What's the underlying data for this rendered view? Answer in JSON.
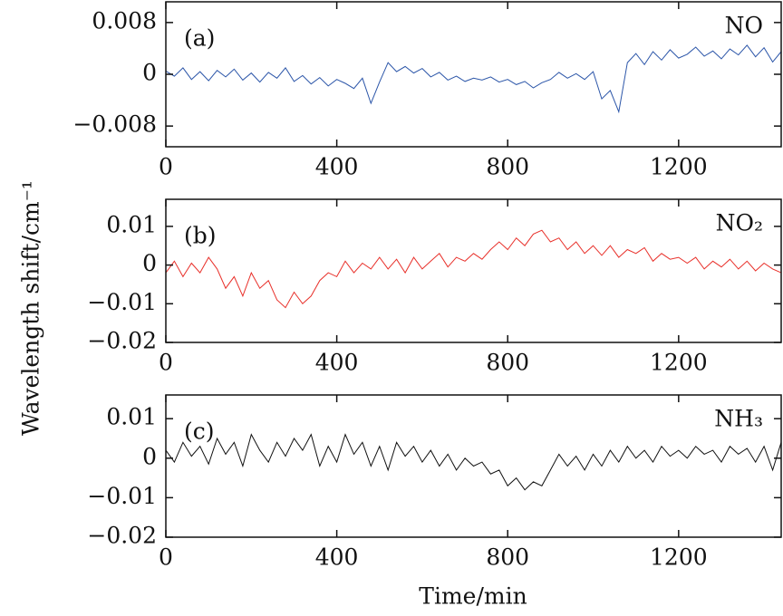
{
  "y_label": "Wavelength shift/cm⁻¹",
  "x_label": "Time/min",
  "chart_data": [
    {
      "type": "line",
      "panel_label": "(a)",
      "annotation": "NO",
      "color": "#2b55a8",
      "x": [
        0,
        20,
        40,
        60,
        80,
        100,
        120,
        140,
        160,
        180,
        200,
        220,
        240,
        260,
        280,
        300,
        320,
        340,
        360,
        380,
        400,
        420,
        440,
        460,
        480,
        500,
        520,
        540,
        560,
        580,
        600,
        620,
        640,
        660,
        680,
        700,
        720,
        740,
        760,
        780,
        800,
        820,
        840,
        860,
        880,
        900,
        920,
        940,
        960,
        980,
        1000,
        1020,
        1040,
        1060,
        1080,
        1100,
        1120,
        1140,
        1160,
        1180,
        1200,
        1220,
        1240,
        1260,
        1280,
        1300,
        1320,
        1340,
        1360,
        1380,
        1400,
        1420,
        1440
      ],
      "values": [
        0.0005,
        -0.0003,
        0.001,
        -0.0008,
        0.0004,
        -0.001,
        0.0006,
        -0.0004,
        0.0008,
        -0.0009,
        0.0002,
        -0.0012,
        0.0003,
        -0.0006,
        0.001,
        -0.0011,
        -0.0002,
        -0.0015,
        -0.0005,
        -0.0018,
        -0.0008,
        -0.0014,
        -0.0022,
        -0.0006,
        -0.0045,
        -0.0012,
        0.0018,
        0.0004,
        0.0012,
        0.0002,
        0.0009,
        -0.0004,
        0.0003,
        -0.0009,
        -0.0003,
        -0.0011,
        -0.0006,
        -0.0009,
        -0.0004,
        -0.0012,
        -0.0008,
        -0.0016,
        -0.0011,
        -0.0021,
        -0.0013,
        -0.0008,
        0.0003,
        -0.0006,
        0.0001,
        -0.0008,
        0.0004,
        -0.0038,
        -0.0025,
        -0.0058,
        0.0018,
        0.0032,
        0.0015,
        0.0035,
        0.0022,
        0.0038,
        0.0025,
        0.0031,
        0.0042,
        0.0028,
        0.0036,
        0.0024,
        0.0039,
        0.003,
        0.0045,
        0.0027,
        0.0041,
        0.0019,
        0.0035
      ],
      "xlim": [
        0,
        1440
      ],
      "xticks": [
        0,
        400,
        800,
        1200
      ],
      "ylim": [
        -0.0112,
        0.0112
      ],
      "yticks": [
        0.008,
        0,
        {
          "value": -0.008,
          "label": "−0.008"
        }
      ]
    },
    {
      "type": "line",
      "panel_label": "(b)",
      "annotation": "NO₂",
      "color": "#e8302a",
      "x": [
        0,
        20,
        40,
        60,
        80,
        100,
        120,
        140,
        160,
        180,
        200,
        220,
        240,
        260,
        280,
        300,
        320,
        340,
        360,
        380,
        400,
        420,
        440,
        460,
        480,
        500,
        520,
        540,
        560,
        580,
        600,
        620,
        640,
        660,
        680,
        700,
        720,
        740,
        760,
        780,
        800,
        820,
        840,
        860,
        880,
        900,
        920,
        940,
        960,
        980,
        1000,
        1020,
        1040,
        1060,
        1080,
        1100,
        1120,
        1140,
        1160,
        1180,
        1200,
        1220,
        1240,
        1260,
        1280,
        1300,
        1320,
        1340,
        1360,
        1380,
        1400,
        1420,
        1440
      ],
      "values": [
        -0.002,
        0.001,
        -0.003,
        0.0005,
        -0.002,
        0.002,
        -0.001,
        -0.006,
        -0.003,
        -0.008,
        -0.002,
        -0.006,
        -0.004,
        -0.009,
        -0.011,
        -0.007,
        -0.01,
        -0.008,
        -0.004,
        -0.002,
        -0.003,
        0.001,
        -0.002,
        0.0005,
        -0.001,
        0.002,
        -0.001,
        0.0015,
        -0.002,
        0.002,
        -0.001,
        0.001,
        0.003,
        -0.0005,
        0.002,
        0.001,
        0.003,
        0.0015,
        0.004,
        0.006,
        0.004,
        0.007,
        0.005,
        0.008,
        0.009,
        0.006,
        0.007,
        0.004,
        0.006,
        0.003,
        0.005,
        0.0025,
        0.005,
        0.002,
        0.004,
        0.003,
        0.0045,
        0.001,
        0.003,
        0.0015,
        0.002,
        0.0005,
        0.002,
        -0.001,
        0.001,
        -0.0005,
        0.0015,
        -0.001,
        0.001,
        -0.0015,
        0.0005,
        -0.001,
        -0.002
      ],
      "xlim": [
        0,
        1440
      ],
      "xticks": [
        0,
        400,
        800,
        1200
      ],
      "ylim": [
        -0.02,
        0.017
      ],
      "yticks": [
        0.01,
        0,
        {
          "value": -0.01,
          "label": "−0.01"
        },
        {
          "value": -0.02,
          "label": "−0.02"
        }
      ]
    },
    {
      "type": "line",
      "panel_label": "(c)",
      "annotation": "NH₃",
      "color": "#111111",
      "x": [
        0,
        20,
        40,
        60,
        80,
        100,
        120,
        140,
        160,
        180,
        200,
        220,
        240,
        260,
        280,
        300,
        320,
        340,
        360,
        380,
        400,
        420,
        440,
        460,
        480,
        500,
        520,
        540,
        560,
        580,
        600,
        620,
        640,
        660,
        680,
        700,
        720,
        740,
        760,
        780,
        800,
        820,
        840,
        860,
        880,
        900,
        920,
        940,
        960,
        980,
        1000,
        1020,
        1040,
        1060,
        1080,
        1100,
        1120,
        1140,
        1160,
        1180,
        1200,
        1220,
        1240,
        1260,
        1280,
        1300,
        1320,
        1340,
        1360,
        1380,
        1400,
        1420,
        1440
      ],
      "values": [
        0.002,
        -0.001,
        0.004,
        0.0005,
        0.003,
        -0.0015,
        0.005,
        0.001,
        0.004,
        -0.002,
        0.006,
        0.002,
        -0.001,
        0.004,
        0.0005,
        0.005,
        0.002,
        0.006,
        -0.002,
        0.003,
        -0.001,
        0.006,
        0.001,
        0.004,
        -0.002,
        0.003,
        -0.003,
        0.004,
        0.0005,
        0.003,
        -0.001,
        0.002,
        -0.002,
        0.001,
        -0.003,
        0,
        -0.002,
        -0.001,
        -0.004,
        -0.003,
        -0.007,
        -0.005,
        -0.008,
        -0.006,
        -0.007,
        -0.003,
        0.001,
        -0.002,
        0.0005,
        -0.003,
        0.001,
        -0.002,
        0.002,
        -0.001,
        0.003,
        0,
        0.002,
        -0.001,
        0.003,
        0.0005,
        0.002,
        0,
        0.003,
        0.001,
        0.002,
        -0.001,
        0.003,
        0.001,
        0.0025,
        -0.001,
        0.003,
        -0.003,
        0.004
      ],
      "xlim": [
        0,
        1440
      ],
      "xticks": [
        0,
        400,
        800,
        1200
      ],
      "ylim": [
        -0.02,
        0.016
      ],
      "yticks": [
        0.01,
        0,
        {
          "value": -0.01,
          "label": "−0.01"
        },
        {
          "value": -0.02,
          "label": "−0.02"
        }
      ]
    }
  ]
}
